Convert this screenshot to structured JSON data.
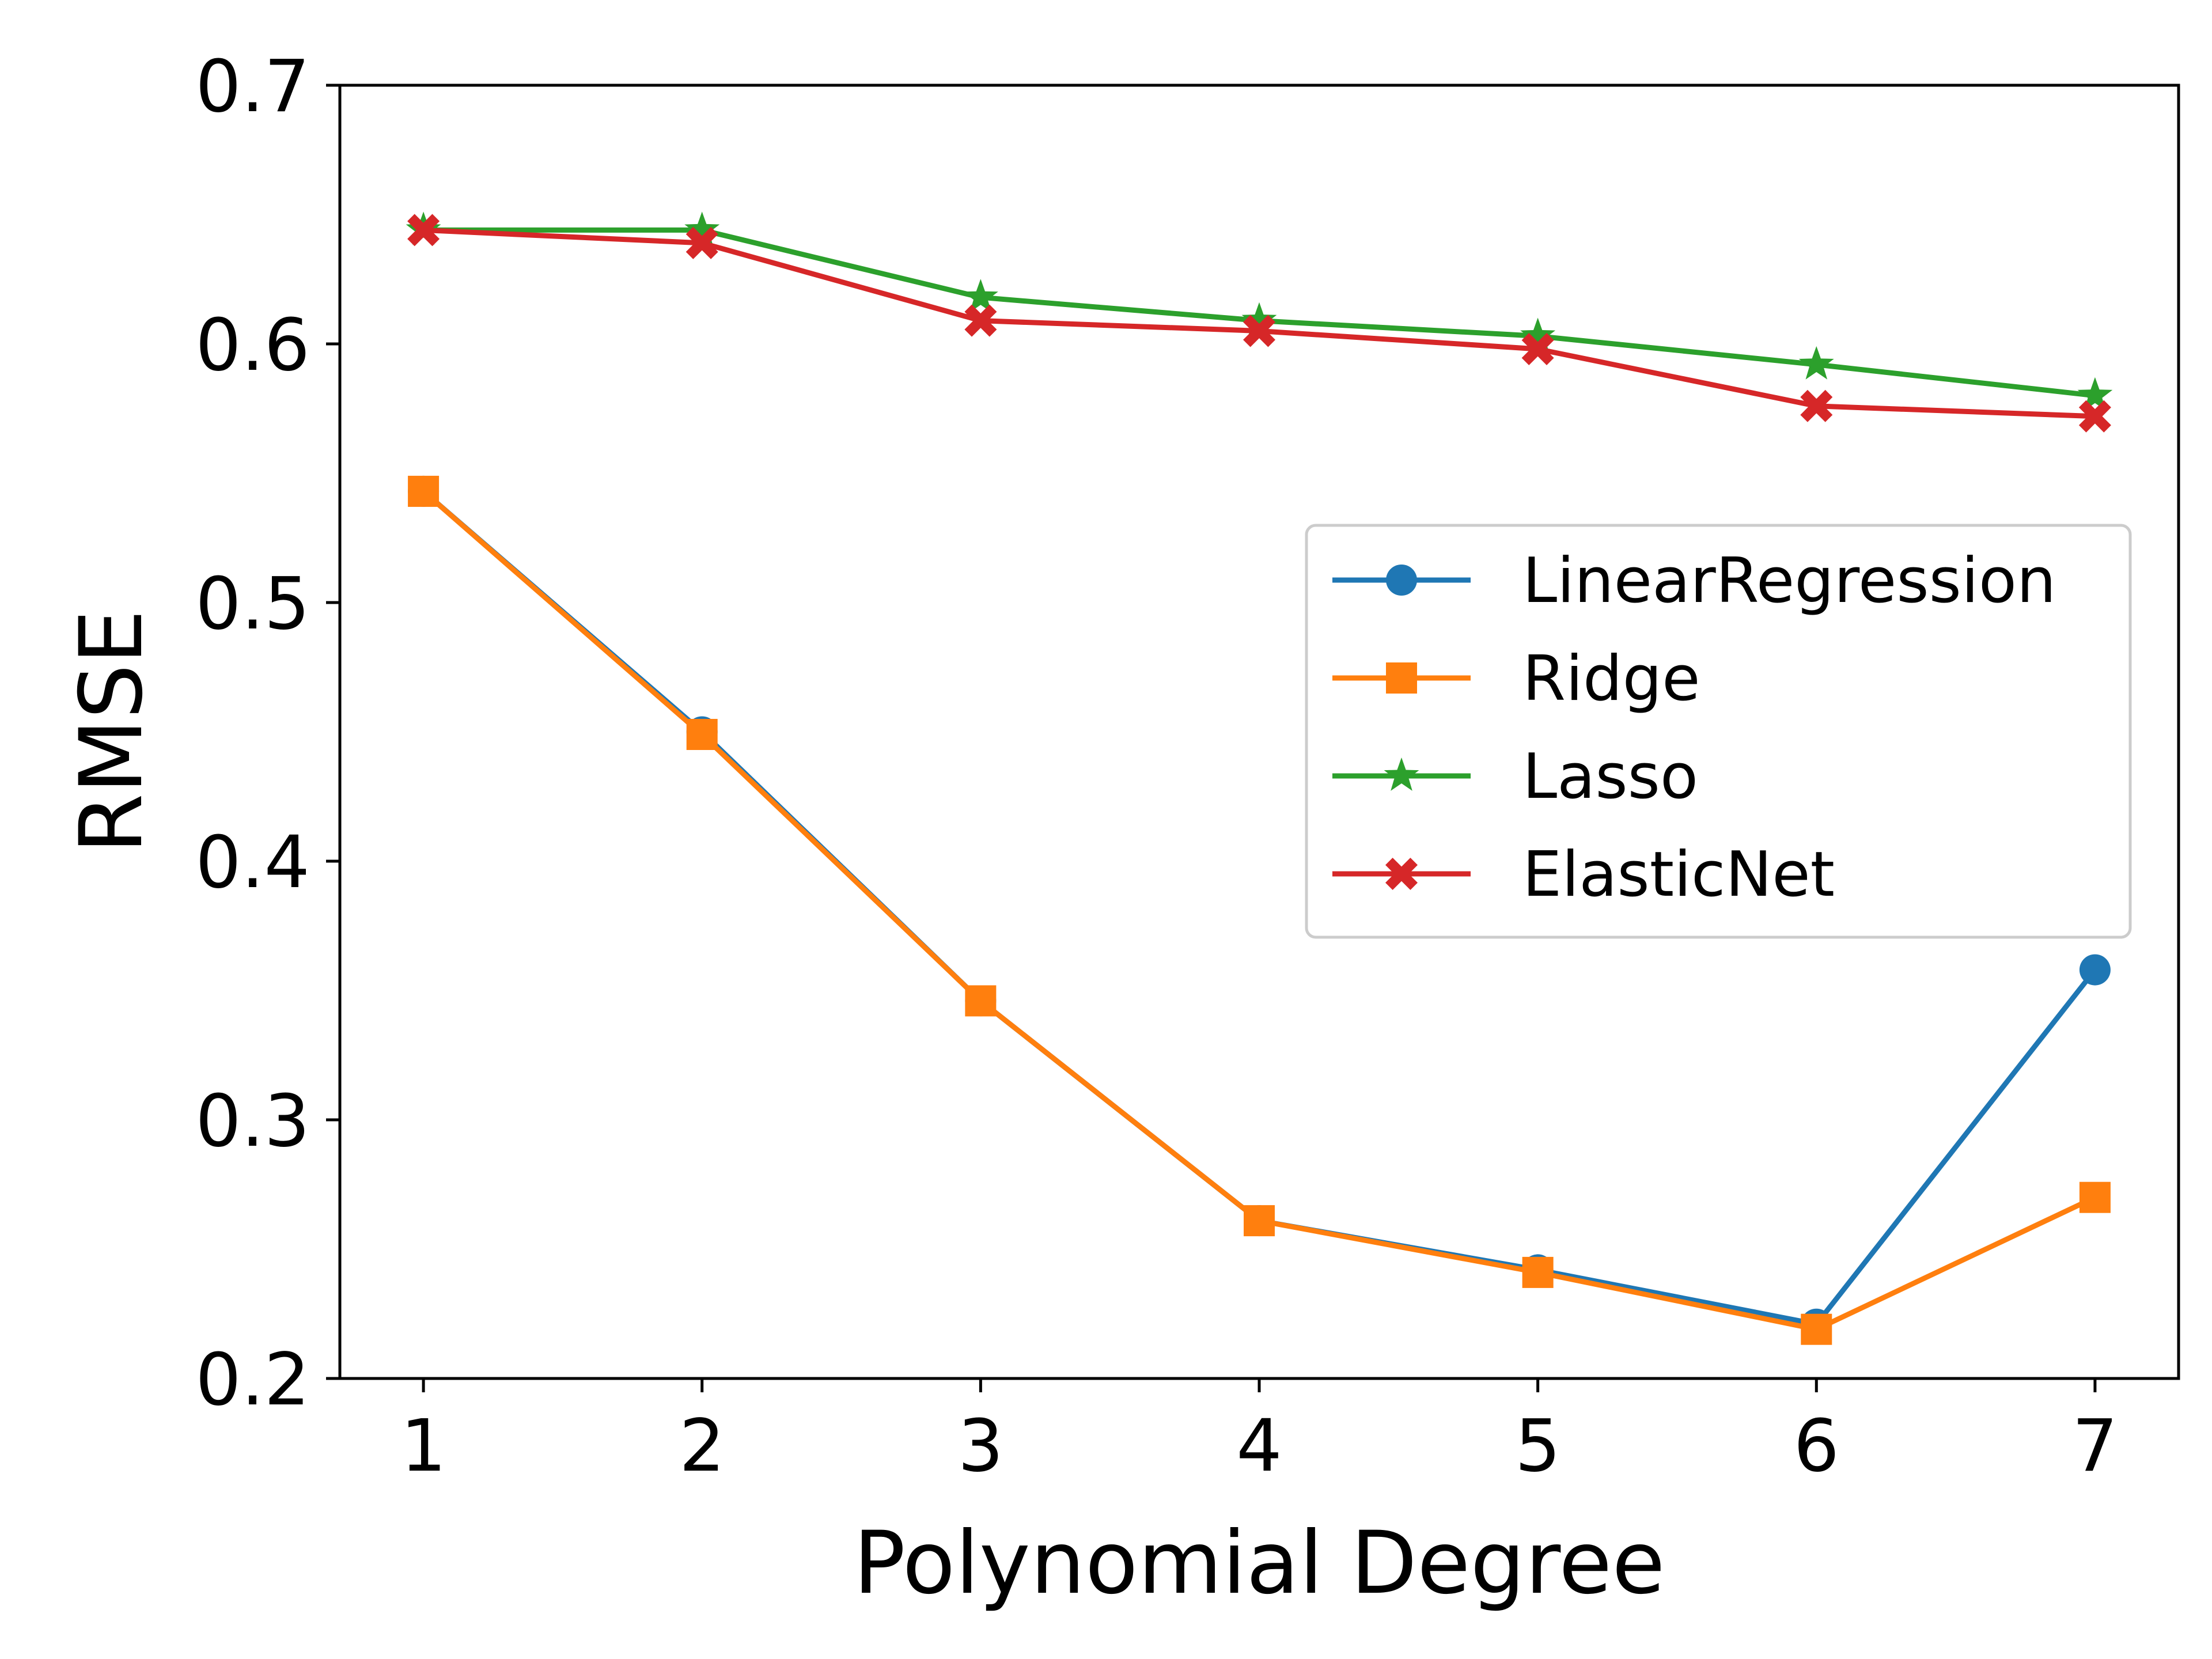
{
  "chart_data": {
    "type": "line",
    "title": "",
    "xlabel": "Polynomial Degree",
    "ylabel": "RMSE",
    "x": [
      1,
      2,
      3,
      4,
      5,
      6,
      7
    ],
    "xlim": [
      0.7,
      7.3
    ],
    "ylim": [
      0.2,
      0.7
    ],
    "xticks": [
      1,
      2,
      3,
      4,
      5,
      6,
      7
    ],
    "yticks": [
      0.2,
      0.3,
      0.4,
      0.5,
      0.6,
      0.7
    ],
    "xtick_labels": [
      "1",
      "2",
      "3",
      "4",
      "5",
      "6",
      "7"
    ],
    "ytick_labels": [
      "0.2",
      "0.3",
      "0.4",
      "0.5",
      "0.6",
      "0.7"
    ],
    "grid": false,
    "legend_position": "center-right",
    "series": [
      {
        "name": "LinearRegression",
        "color": "#1f77b4",
        "marker": "circle",
        "values": [
          0.543,
          0.45,
          0.346,
          0.261,
          0.242,
          0.221,
          0.358
        ]
      },
      {
        "name": "Ridge",
        "color": "#ff7f0e",
        "marker": "square",
        "values": [
          0.543,
          0.449,
          0.346,
          0.261,
          0.241,
          0.219,
          0.27
        ]
      },
      {
        "name": "Lasso",
        "color": "#2ca02c",
        "marker": "star",
        "values": [
          0.644,
          0.644,
          0.618,
          0.609,
          0.603,
          0.592,
          0.58
        ]
      },
      {
        "name": "ElasticNet",
        "color": "#d62728",
        "marker": "x-filled",
        "values": [
          0.644,
          0.639,
          0.609,
          0.605,
          0.598,
          0.576,
          0.572
        ]
      }
    ]
  }
}
